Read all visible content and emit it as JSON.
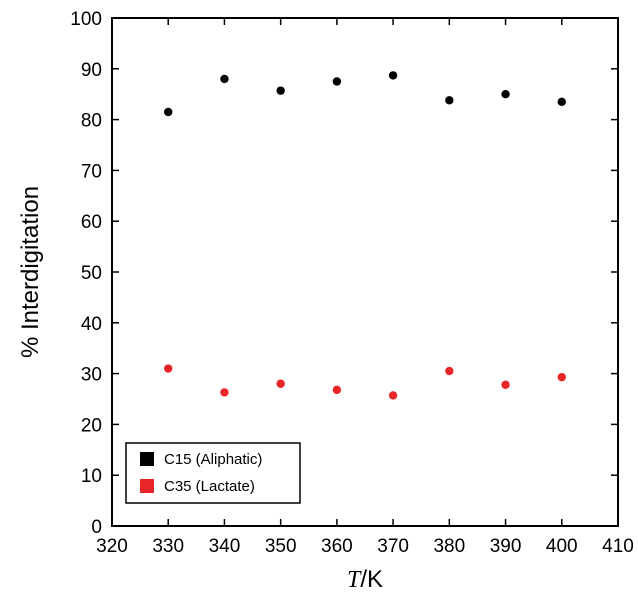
{
  "chart_data": {
    "type": "scatter",
    "xlabel_italic": "T",
    "xlabel_rest": "/K",
    "ylabel": "% Interdigitation",
    "xlim": [
      320,
      410
    ],
    "ylim": [
      0,
      100
    ],
    "x_ticks": [
      320,
      330,
      340,
      350,
      360,
      370,
      380,
      390,
      400,
      410
    ],
    "y_ticks": [
      0,
      10,
      20,
      30,
      40,
      50,
      60,
      70,
      80,
      90,
      100
    ],
    "grid": false,
    "legend_position": "bottom-left",
    "series": [
      {
        "name": "C15 (Aliphatic)",
        "color": "#000000",
        "x": [
          330,
          340,
          350,
          360,
          370,
          380,
          390,
          400
        ],
        "y": [
          81.5,
          88.0,
          85.7,
          87.5,
          88.7,
          83.8,
          85.0,
          83.5
        ]
      },
      {
        "name": "C35 (Lactate)",
        "color": "#e8262a",
        "x": [
          330,
          340,
          350,
          360,
          370,
          380,
          390,
          400
        ],
        "y": [
          31.0,
          26.3,
          28.0,
          26.8,
          25.7,
          30.5,
          27.8,
          29.3
        ]
      }
    ]
  }
}
